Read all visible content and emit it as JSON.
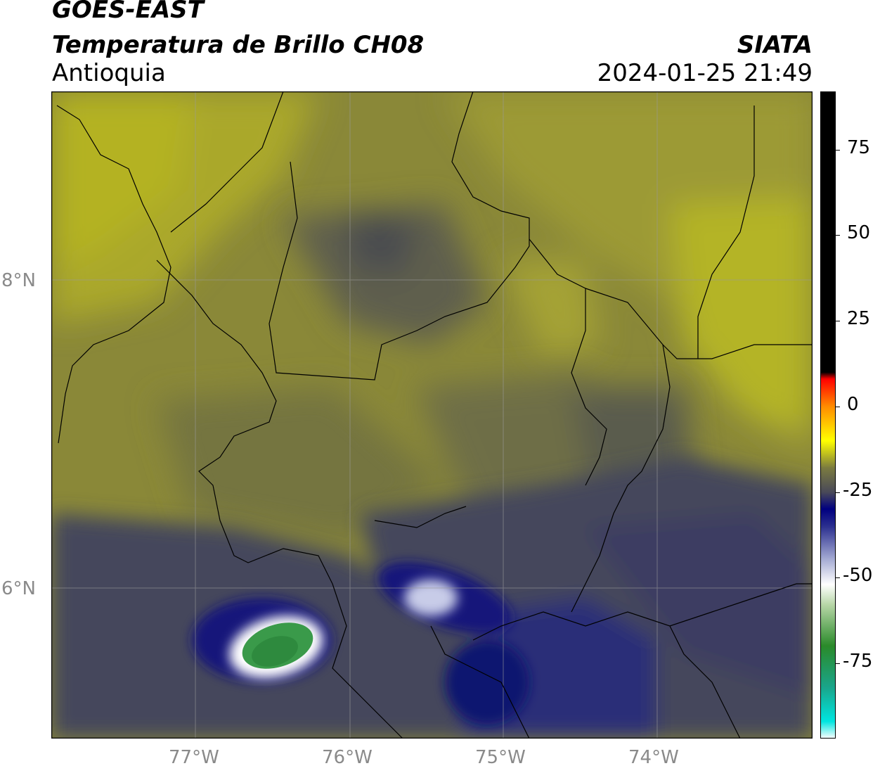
{
  "header": {
    "satellite": "GOES-EAST",
    "product": "Temperatura de Brillo CH08",
    "organization": "SIATA",
    "region": "Antioquia",
    "timestamp": "2024-01-25 21:49"
  },
  "axes": {
    "lat_labels": [
      "8°N",
      "6°N"
    ],
    "lon_labels": [
      "77°W",
      "76°W",
      "75°W",
      "74°W"
    ]
  },
  "colorbar": {
    "ticks": [
      "75",
      "50",
      "25",
      "0",
      "-25",
      "-50",
      "-75"
    ],
    "stops": [
      {
        "color": "#ffffff",
        "value": -97
      },
      {
        "color": "#00e5e0",
        "value": -92
      },
      {
        "color": "#1aa58a",
        "value": -82
      },
      {
        "color": "#2a8a2a",
        "value": -70
      },
      {
        "color": "#b6d6a6",
        "value": -58
      },
      {
        "color": "#ffffff",
        "value": -52
      },
      {
        "color": "#aab0d6",
        "value": -45
      },
      {
        "color": "#2b2f8f",
        "value": -35
      },
      {
        "color": "#000080",
        "value": -30
      },
      {
        "color": "#4a4a58",
        "value": -25
      },
      {
        "color": "#7a7a40",
        "value": -18
      },
      {
        "color": "#ffff00",
        "value": -10
      },
      {
        "color": "#ff8c00",
        "value": 0
      },
      {
        "color": "#ff0000",
        "value": 8
      },
      {
        "color": "#000000",
        "value": 10
      },
      {
        "color": "#000000",
        "value": 92
      }
    ]
  },
  "colors": {
    "land_warm": "#a8a830",
    "land_mid": "#7c7c3a",
    "cloud_dark": "#45475a",
    "cloud_navy": "#14187a",
    "cloud_white": "#ffffff",
    "cloud_green": "#3a9a4a"
  }
}
